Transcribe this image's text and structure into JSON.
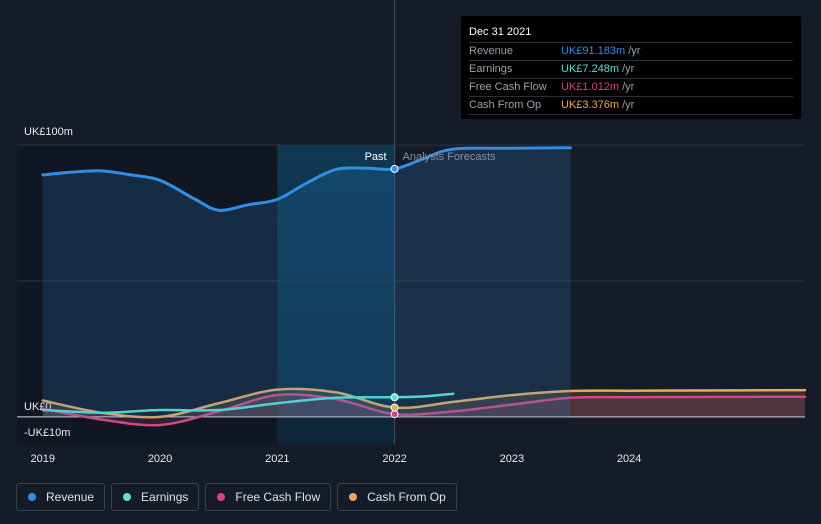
{
  "chart_data": {
    "type": "line",
    "title": "",
    "xlabel": "",
    "ylabel": "",
    "ylim": [
      -10,
      100
    ],
    "y_ticks": [
      {
        "value": 100,
        "label": "UK£100m"
      },
      {
        "value": 0,
        "label": "UK£0"
      },
      {
        "value": -10,
        "label": "-UK£10m"
      }
    ],
    "x_ticks": [
      {
        "value": 2019,
        "label": "2019"
      },
      {
        "value": 2020,
        "label": "2020"
      },
      {
        "value": 2021,
        "label": "2021"
      },
      {
        "value": 2022,
        "label": "2022"
      },
      {
        "value": 2023,
        "label": "2023"
      },
      {
        "value": 2024,
        "label": "2024"
      }
    ],
    "xlim": [
      2018.78,
      2025.5
    ],
    "past_end": 2022.0,
    "highlight_start": 2021.0,
    "past_label": "Past",
    "forecast_label": "Analysts Forecasts",
    "series": [
      {
        "name": "Revenue",
        "color": "#2f8ee6",
        "fill": true,
        "x": [
          2019.0,
          2019.25,
          2019.5,
          2019.75,
          2020.0,
          2020.3,
          2020.5,
          2020.75,
          2021.0,
          2021.25,
          2021.5,
          2021.75,
          2022.0,
          2022.25,
          2022.5,
          2023.0,
          2023.5
        ],
        "y": [
          89,
          90,
          90.5,
          89,
          87,
          80,
          76,
          78,
          80,
          86,
          91,
          91.5,
          91.2,
          95,
          98.5,
          98.8,
          99
        ]
      },
      {
        "name": "Earnings",
        "color": "#5ce0d0",
        "fill": false,
        "x": [
          2019.0,
          2019.5,
          2020.0,
          2020.5,
          2021.0,
          2021.5,
          2022.0,
          2022.25,
          2022.5
        ],
        "y": [
          2.5,
          1.5,
          2.5,
          2.5,
          5,
          7,
          7.2,
          7.5,
          8.5
        ]
      },
      {
        "name": "Free Cash Flow",
        "color": "#d0487e",
        "fill": true,
        "x": [
          2019.0,
          2019.5,
          2020.0,
          2020.5,
          2021.0,
          2021.5,
          2022.0,
          2022.5,
          2023.0,
          2023.5,
          2024.0,
          2024.5,
          2025.5
        ],
        "y": [
          3,
          -1,
          -3,
          2,
          8,
          6.5,
          1,
          2,
          4.5,
          7,
          7.2,
          7.3,
          7.4
        ]
      },
      {
        "name": "Cash From Op",
        "color": "#e6a95c",
        "fill": true,
        "x": [
          2019.0,
          2019.5,
          2020.0,
          2020.5,
          2021.0,
          2021.5,
          2022.0,
          2022.5,
          2023.0,
          2023.5,
          2024.0,
          2024.5,
          2025.5
        ],
        "y": [
          6,
          1.5,
          0,
          5,
          10,
          9,
          3.4,
          5.5,
          8,
          9.5,
          9.6,
          9.7,
          9.8
        ]
      }
    ]
  },
  "tooltip": {
    "date": "Dec 31 2021",
    "rows": [
      {
        "label": "Revenue",
        "value": "UK£91.183m",
        "unit": "/yr",
        "color": "#2f8ee6"
      },
      {
        "label": "Earnings",
        "value": "UK£7.248m",
        "unit": "/yr",
        "color": "#5ce0d0"
      },
      {
        "label": "Free Cash Flow",
        "value": "UK£1.012m",
        "unit": "/yr",
        "color": "#d0487e"
      },
      {
        "label": "Cash From Op",
        "value": "UK£3.376m",
        "unit": "/yr",
        "color": "#e6a95c"
      }
    ]
  },
  "legend": [
    {
      "label": "Revenue",
      "color": "#2f8ee6"
    },
    {
      "label": "Earnings",
      "color": "#5ce0d0"
    },
    {
      "label": "Free Cash Flow",
      "color": "#d0487e"
    },
    {
      "label": "Cash From Op",
      "color": "#e6a95c"
    }
  ]
}
